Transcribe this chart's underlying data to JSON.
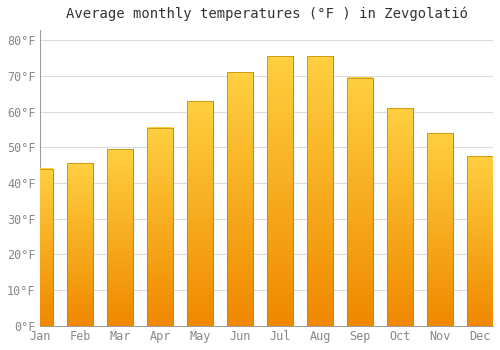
{
  "title": "Average monthly temperatures (°F ) in Zevgolatió",
  "months": [
    "Jan",
    "Feb",
    "Mar",
    "Apr",
    "May",
    "Jun",
    "Jul",
    "Aug",
    "Sep",
    "Oct",
    "Nov",
    "Dec"
  ],
  "values": [
    44,
    45.5,
    49.5,
    55.5,
    63,
    71,
    75.5,
    75.5,
    69.5,
    61,
    54,
    47.5
  ],
  "bar_color_top": "#FFD040",
  "bar_color_bottom": "#F08800",
  "bar_edge_color": "#B8860B",
  "background_color": "#FFFFFF",
  "plot_bg_color": "#FFFFFF",
  "grid_color": "#DDDDDD",
  "yticks": [
    0,
    10,
    20,
    30,
    40,
    50,
    60,
    70,
    80
  ],
  "ylim": [
    0,
    83
  ],
  "title_fontsize": 10,
  "tick_fontsize": 8.5,
  "tick_color": "#888888",
  "title_color": "#333333"
}
